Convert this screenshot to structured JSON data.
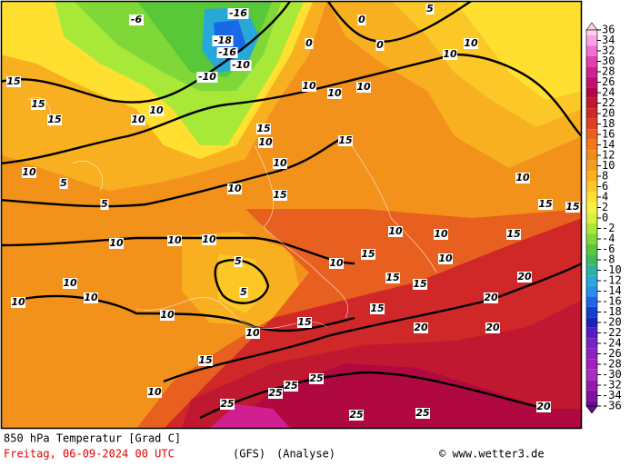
{
  "map": {
    "title": "850 hPa Temperatur [Grad C]",
    "date": "Freitag, 06-09-2024  00 UTC",
    "model": "(GFS)",
    "run": "(Analyse)",
    "credit": "© www.wetter3.de",
    "legend": {
      "labels": [
        36,
        34,
        32,
        30,
        28,
        26,
        24,
        22,
        20,
        18,
        16,
        14,
        12,
        10,
        8,
        6,
        4,
        2,
        0,
        -2,
        -4,
        -6,
        -8,
        -10,
        -12,
        -14,
        -16,
        -18,
        -20,
        -22,
        -24,
        -26,
        -28,
        -30,
        -32,
        -34,
        -36
      ],
      "colors": [
        "#ffd0f0",
        "#ffa0e0",
        "#f070d0",
        "#e040b0",
        "#d02090",
        "#c01070",
        "#b00840",
        "#c01830",
        "#d02828",
        "#e04020",
        "#e86020",
        "#f07818",
        "#f08c18",
        "#f49c20",
        "#f8b020",
        "#fcc828",
        "#ffe030",
        "#f8f040",
        "#d8f040",
        "#a8e838",
        "#80d838",
        "#58c838",
        "#40b860",
        "#30b0a0",
        "#28a8d8",
        "#2890e8",
        "#1868e8",
        "#1040d0",
        "#2020b8",
        "#5020c0",
        "#7820c8",
        "#9020c0",
        "#a020b8",
        "#a830c0",
        "#9818a8",
        "#8010a0",
        "#680890"
      ]
    },
    "contour_labels": [
      -16,
      -18,
      -16,
      -10,
      -10,
      -6,
      0,
      0,
      0,
      5,
      10,
      10,
      15,
      15,
      15,
      10,
      10,
      10,
      5,
      5,
      10,
      10,
      15,
      15,
      10,
      10,
      10,
      15,
      10,
      10,
      10,
      10,
      10,
      10,
      10,
      5,
      5,
      10,
      10,
      15,
      15,
      15,
      15,
      15,
      10,
      15,
      10,
      10,
      15,
      20,
      20,
      20,
      20,
      25,
      25,
      25,
      25,
      25,
      25,
      20,
      10,
      10,
      15,
      15,
      10
    ]
  }
}
